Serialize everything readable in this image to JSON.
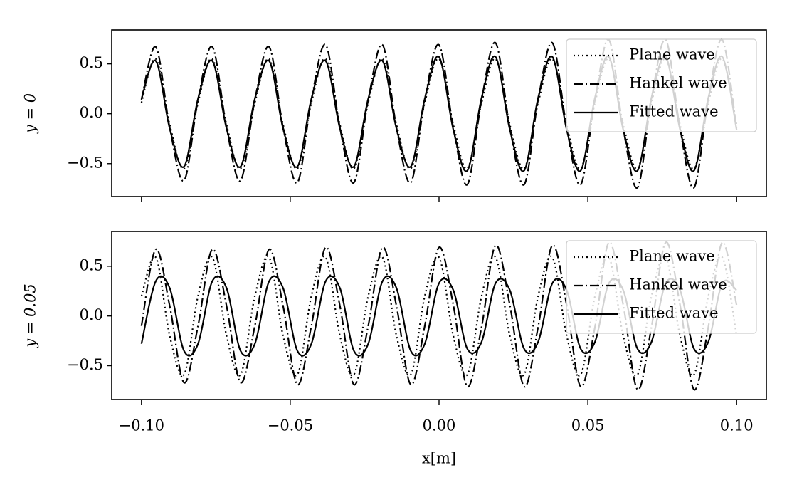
{
  "chart_data": [
    {
      "type": "line",
      "ylabel": "y = 0",
      "x": [
        -0.1,
        -0.0952,
        -0.0905,
        -0.0857,
        -0.081,
        -0.0762,
        -0.0714,
        -0.0667,
        -0.0619,
        -0.0571,
        -0.0524,
        -0.0476,
        -0.0429,
        -0.0381,
        -0.0333,
        -0.0286,
        -0.0238,
        -0.019,
        -0.0143,
        -0.0095,
        -0.0048,
        0,
        0.0048,
        0.0095,
        0.0143,
        0.019,
        0.0238,
        0.0286,
        0.0333,
        0.0381,
        0.0429,
        0.0476,
        0.0524,
        0.0571,
        0.0619,
        0.0667,
        0.0714,
        0.0762,
        0.081,
        0.0857,
        0.0905,
        0.0952,
        0.1
      ],
      "series": [
        {
          "name": "Plane wave",
          "color": "#000000",
          "dash": "dotted",
          "values": [
            0.11,
            0.55,
            -0.11,
            -0.55,
            0.11,
            0.55,
            -0.11,
            -0.55,
            0.11,
            0.55,
            -0.11,
            -0.55,
            0.11,
            0.55,
            -0.11,
            -0.55,
            0.11,
            0.55,
            -0.11,
            -0.55,
            0.11,
            0.55,
            -0.11,
            -0.55,
            0.11,
            0.55,
            -0.11,
            -0.55,
            0.11,
            0.55,
            -0.11,
            -0.55,
            0.11,
            0.55,
            -0.11,
            -0.55,
            0.11,
            0.55,
            -0.11,
            -0.55,
            0.11,
            0.55,
            -0.11
          ]
        },
        {
          "name": "Hankel wave",
          "color": "#000000",
          "dash": "dashdot",
          "values": [
            0.14,
            0.67,
            -0.14,
            -0.67,
            0.14,
            0.67,
            -0.14,
            -0.67,
            0.14,
            0.67,
            -0.14,
            -0.69,
            0.14,
            0.69,
            -0.14,
            -0.69,
            0.14,
            0.69,
            -0.14,
            -0.69,
            0.14,
            0.69,
            -0.14,
            -0.71,
            0.14,
            0.71,
            -0.14,
            -0.71,
            0.14,
            0.71,
            -0.14,
            -0.71,
            0.14,
            0.74,
            -0.15,
            -0.74,
            0.15,
            0.74,
            -0.15,
            -0.74,
            0.15,
            0.74,
            -0.15
          ]
        },
        {
          "name": "Fitted wave",
          "color": "#000000",
          "dash": "solid",
          "values": [
            0.15,
            0.53,
            -0.15,
            -0.53,
            0.15,
            0.53,
            -0.15,
            -0.53,
            0.15,
            0.53,
            -0.15,
            -0.53,
            0.15,
            0.53,
            -0.15,
            -0.53,
            0.15,
            0.53,
            -0.15,
            -0.53,
            0.15,
            0.57,
            -0.16,
            -0.57,
            0.16,
            0.57,
            -0.16,
            -0.57,
            0.16,
            0.57,
            -0.16,
            -0.57,
            0.16,
            0.57,
            -0.16,
            -0.57,
            0.16,
            0.57,
            -0.16,
            -0.57,
            0.16,
            0.57,
            -0.16
          ]
        }
      ],
      "xlim": [
        -0.11,
        0.11
      ],
      "ylim": [
        -0.83,
        0.84
      ],
      "yticks": [
        {
          "value": -0.5,
          "label": "−0.5"
        },
        {
          "value": 0,
          "label": "0.0"
        },
        {
          "value": 0.5,
          "label": "0.5"
        }
      ],
      "legend": "upper right"
    },
    {
      "type": "line",
      "ylabel": "y = 0.05",
      "xlabel": "x[m]",
      "x": [
        -0.1,
        -0.0952,
        -0.0905,
        -0.0857,
        -0.081,
        -0.0762,
        -0.0714,
        -0.0667,
        -0.0619,
        -0.0571,
        -0.0524,
        -0.0476,
        -0.0429,
        -0.0381,
        -0.0333,
        -0.0286,
        -0.0238,
        -0.019,
        -0.0143,
        -0.0095,
        -0.0048,
        0,
        0.0048,
        0.0095,
        0.0143,
        0.019,
        0.0238,
        0.0286,
        0.0333,
        0.0381,
        0.0429,
        0.0476,
        0.0524,
        0.0571,
        0.0619,
        0.0667,
        0.0714,
        0.0762,
        0.081,
        0.0857,
        0.0905,
        0.0952,
        0.1
      ],
      "series": [
        {
          "name": "Plane wave",
          "color": "#000000",
          "dash": "dotted",
          "values": [
            0.2,
            0.59,
            -0.2,
            -0.59,
            0.2,
            0.59,
            -0.2,
            -0.59,
            0.2,
            0.59,
            -0.2,
            -0.59,
            0.2,
            0.59,
            -0.2,
            -0.59,
            0.2,
            0.59,
            -0.2,
            -0.59,
            0.2,
            0.59,
            -0.2,
            -0.59,
            0.2,
            0.59,
            -0.2,
            -0.59,
            0.2,
            0.59,
            -0.2,
            -0.59,
            0.2,
            0.59,
            -0.2,
            -0.59,
            0.2,
            0.59,
            -0.2,
            -0.59,
            0.2,
            0.59,
            -0.2
          ]
        },
        {
          "name": "Hankel wave",
          "color": "#000000",
          "dash": "dashdot",
          "values": [
            -0.1,
            0.67,
            0.1,
            -0.67,
            -0.1,
            0.67,
            0.1,
            -0.67,
            -0.1,
            0.67,
            0.1,
            -0.69,
            -0.1,
            0.69,
            0.1,
            -0.69,
            -0.1,
            0.69,
            0.1,
            -0.69,
            -0.1,
            0.69,
            0.11,
            -0.71,
            -0.11,
            0.71,
            0.11,
            -0.71,
            -0.11,
            0.71,
            0.11,
            -0.71,
            -0.11,
            0.74,
            0.11,
            -0.74,
            -0.11,
            0.74,
            0.11,
            -0.74,
            -0.11,
            0.74,
            0.11
          ]
        },
        {
          "name": "Fitted wave",
          "color": "#000000",
          "dash": "solid",
          "values": [
            -0.28,
            0.35,
            0.28,
            -0.35,
            -0.28,
            0.35,
            0.28,
            -0.35,
            -0.28,
            0.35,
            0.28,
            -0.35,
            -0.28,
            0.35,
            0.28,
            -0.35,
            -0.28,
            0.35,
            0.28,
            -0.35,
            -0.28,
            0.33,
            0.26,
            -0.33,
            -0.26,
            0.33,
            0.26,
            -0.33,
            -0.26,
            0.33,
            0.26,
            -0.33,
            -0.26,
            0.33,
            0.26,
            -0.33,
            -0.26,
            0.33,
            0.26,
            -0.33,
            -0.26,
            0.33,
            0.26
          ]
        }
      ],
      "xlim": [
        -0.11,
        0.11
      ],
      "ylim": [
        -0.84,
        0.85
      ],
      "xticks": [
        {
          "value": -0.1,
          "label": "−0.10"
        },
        {
          "value": -0.05,
          "label": "−0.05"
        },
        {
          "value": 0,
          "label": "0.00"
        },
        {
          "value": 0.05,
          "label": "0.05"
        },
        {
          "value": 0.1,
          "label": "0.10"
        }
      ],
      "yticks": [
        {
          "value": -0.5,
          "label": "−0.5"
        },
        {
          "value": 0,
          "label": "0.0"
        },
        {
          "value": 0.5,
          "label": "0.5"
        }
      ],
      "legend": "upper right"
    }
  ]
}
